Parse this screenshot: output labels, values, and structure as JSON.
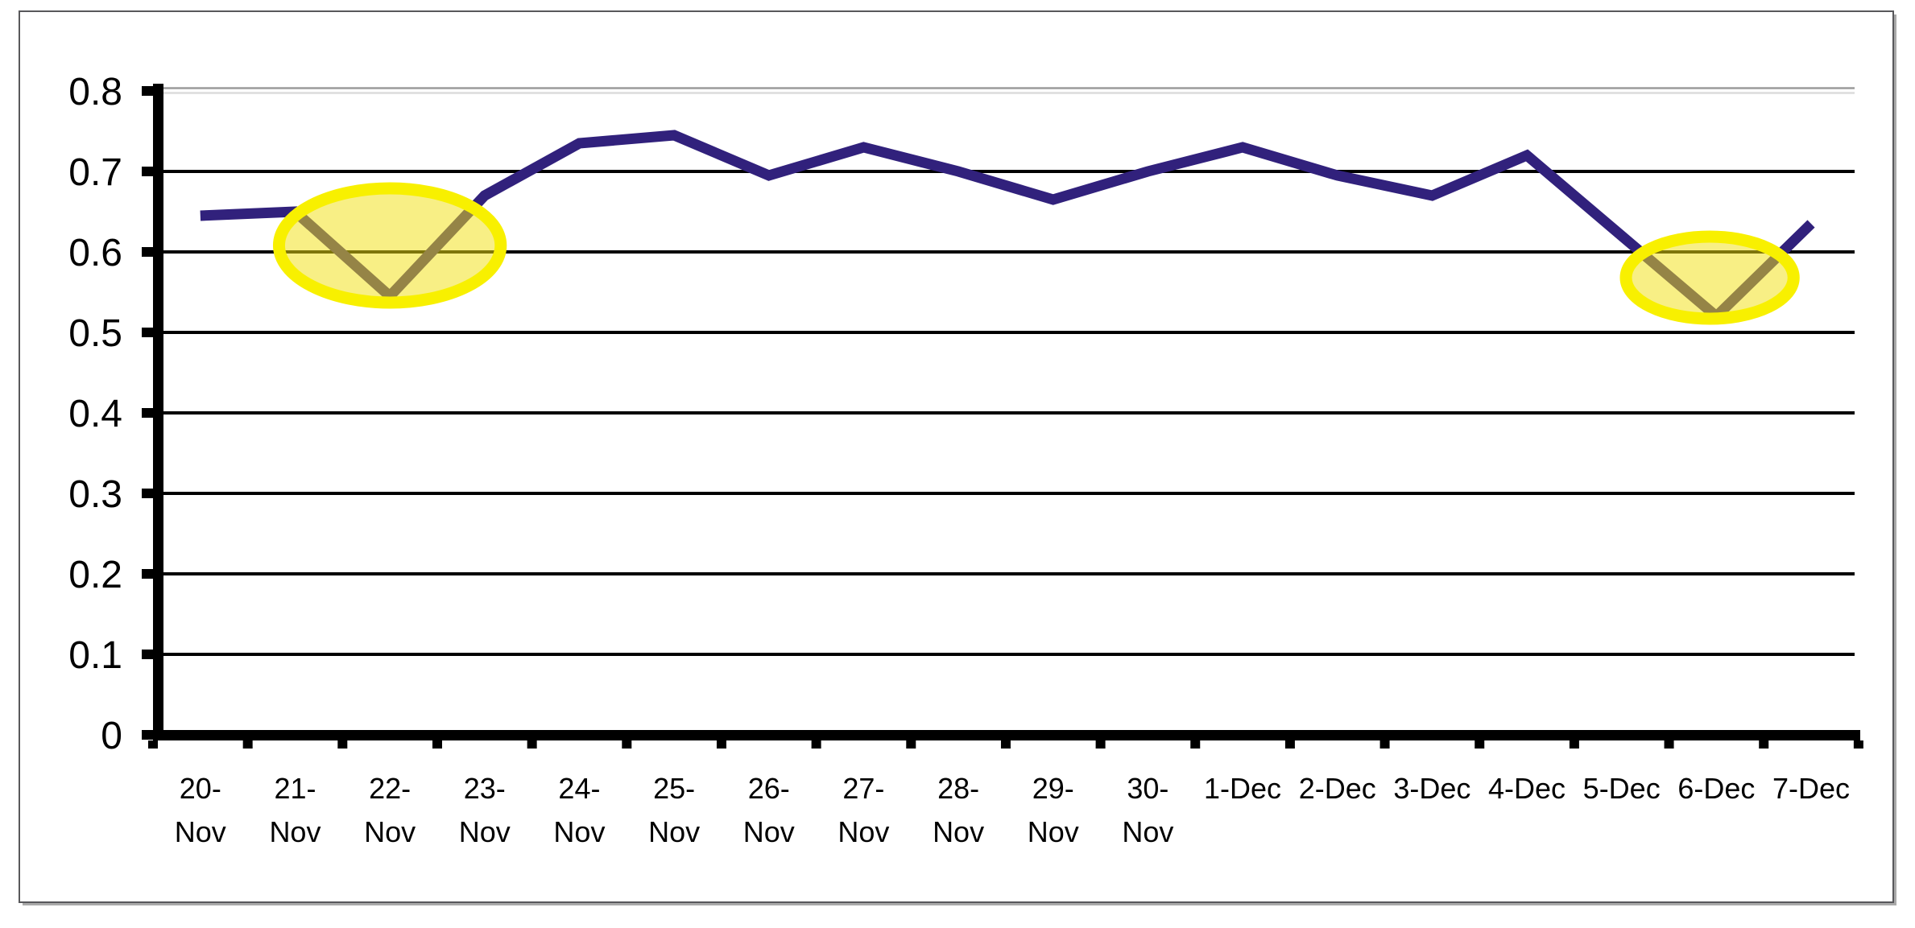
{
  "frame": {
    "background": "#FFFFFF",
    "border_color": "#58585B"
  },
  "chart_data": {
    "type": "line",
    "title": "",
    "xlabel": "",
    "ylabel": "",
    "legend": "none",
    "grid": "horizontal",
    "ylim": [
      0,
      0.8
    ],
    "categories": [
      "20-Nov",
      "21-Nov",
      "22-Nov",
      "23-Nov",
      "24-Nov",
      "25-Nov",
      "26-Nov",
      "27-Nov",
      "28-Nov",
      "29-Nov",
      "30-Nov",
      "1-Dec",
      "2-Dec",
      "3-Dec",
      "4-Dec",
      "5-Dec",
      "6-Dec",
      "7-Dec"
    ],
    "x_tick_lines": [
      [
        "20-",
        "Nov"
      ],
      [
        "21-",
        "Nov"
      ],
      [
        "22-",
        "Nov"
      ],
      [
        "23-",
        "Nov"
      ],
      [
        "24-",
        "Nov"
      ],
      [
        "25-",
        "Nov"
      ],
      [
        "26-",
        "Nov"
      ],
      [
        "27-",
        "Nov"
      ],
      [
        "28-",
        "Nov"
      ],
      [
        "29-",
        "Nov"
      ],
      [
        "30-",
        "Nov"
      ],
      [
        "1-Dec"
      ],
      [
        "2-Dec"
      ],
      [
        "3-Dec"
      ],
      [
        "4-Dec"
      ],
      [
        "5-Dec"
      ],
      [
        "6-Dec"
      ],
      [
        "7-Dec"
      ]
    ],
    "values": [
      0.645,
      0.65,
      0.545,
      0.67,
      0.735,
      0.745,
      0.695,
      0.73,
      0.7,
      0.665,
      0.7,
      0.73,
      0.695,
      0.67,
      0.72,
      0.62,
      0.52,
      0.635
    ],
    "series": [
      {
        "name": "series-1",
        "values": [
          0.645,
          0.65,
          0.545,
          0.67,
          0.735,
          0.745,
          0.695,
          0.73,
          0.7,
          0.665,
          0.7,
          0.73,
          0.695,
          0.67,
          0.72,
          0.62,
          0.52,
          0.635
        ]
      }
    ],
    "y_ticks": [
      "0",
      "0.1",
      "0.2",
      "0.3",
      "0.4",
      "0.5",
      "0.6",
      "0.7",
      "0.8"
    ],
    "y_tick_values": [
      0,
      0.1,
      0.2,
      0.3,
      0.4,
      0.5,
      0.6,
      0.7,
      0.8
    ],
    "highlights": [
      {
        "label": "dip-highlight-22-Nov",
        "category": "22-Nov",
        "category_index": 2.0,
        "value_center": 0.608,
        "radius_categories": 1.17,
        "radius_value": 0.071
      },
      {
        "label": "dip-highlight-6-Dec",
        "category": "6-Dec",
        "category_index": 15.93,
        "value_center": 0.568,
        "radius_categories": 0.885,
        "radius_value": 0.051
      }
    ],
    "style": {
      "line_color": "#31217C",
      "gridline_color": "#000000",
      "top_gridline_colors": [
        "#9B9B9B",
        "#DCDCDC"
      ],
      "axis_color": "#000000",
      "text_color": "#000000",
      "highlight_fill": "rgba(242,224,22,0.52)",
      "highlight_ring": "#F8F000"
    }
  }
}
